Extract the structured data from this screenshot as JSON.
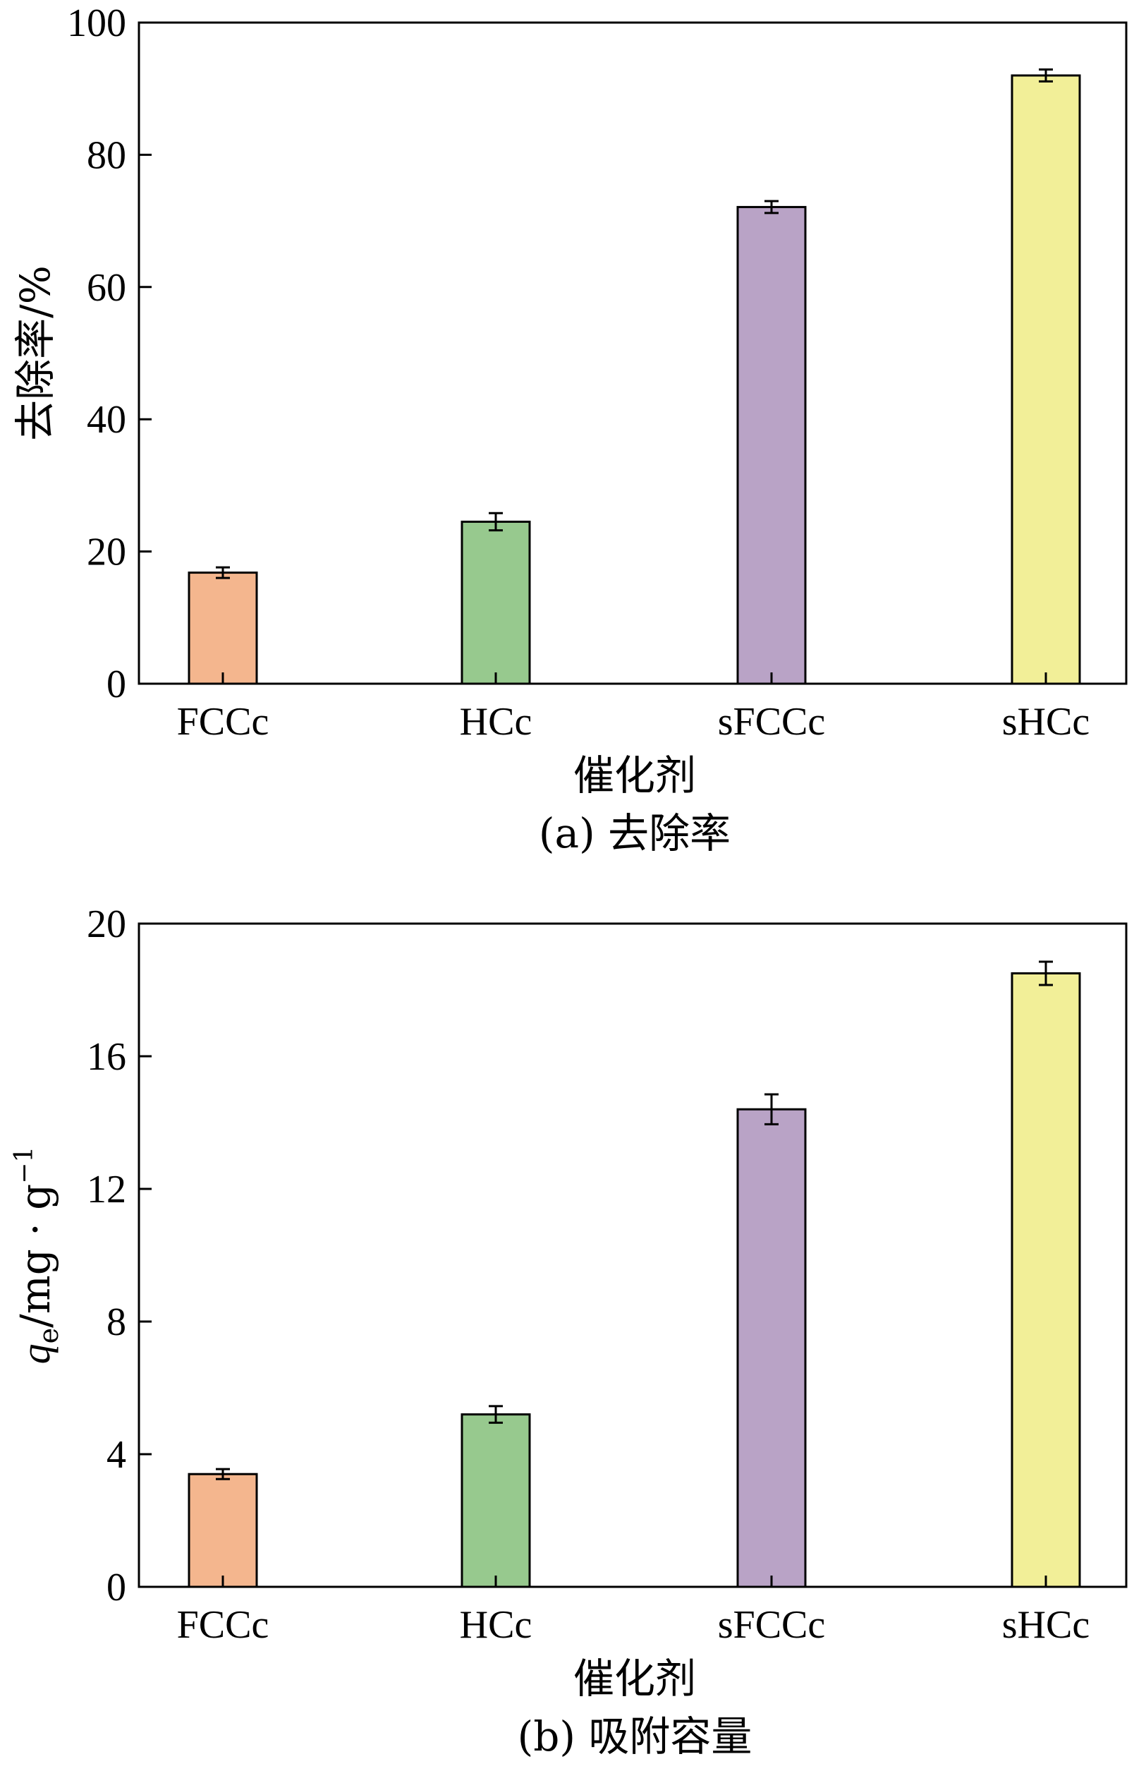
{
  "chart_data": [
    {
      "type": "bar",
      "categories": [
        "FCCc",
        "HCc",
        "sFCCc",
        "sHCc"
      ],
      "values": [
        16.8,
        24.5,
        72.1,
        92.0
      ],
      "errors": [
        0.8,
        1.3,
        0.9,
        0.9
      ],
      "colors": [
        "#f4b68e",
        "#97c98e",
        "#b9a3c6",
        "#f2ef98"
      ],
      "xlabel": "催化剂",
      "ylabel": "去除率/%",
      "caption": "(a) 去除率",
      "ylim": [
        0,
        100
      ],
      "yticks": [
        0,
        20,
        40,
        60,
        80,
        100
      ],
      "grid": false
    },
    {
      "type": "bar",
      "categories": [
        "FCCc",
        "HCc",
        "sFCCc",
        "sHCc"
      ],
      "values": [
        3.4,
        5.2,
        14.4,
        18.5
      ],
      "errors": [
        0.15,
        0.25,
        0.45,
        0.35
      ],
      "colors": [
        "#f4b68e",
        "#97c98e",
        "#b9a3c6",
        "#f2ef98"
      ],
      "xlabel": "催化剂",
      "ylabel": {
        "q": "q",
        "sub": "e",
        "unit": "/mg · g",
        "sup": "−1"
      },
      "caption": "(b) 吸附容量",
      "ylim": [
        0,
        20
      ],
      "yticks": [
        0,
        4,
        8,
        12,
        16,
        20
      ],
      "grid": false
    }
  ]
}
